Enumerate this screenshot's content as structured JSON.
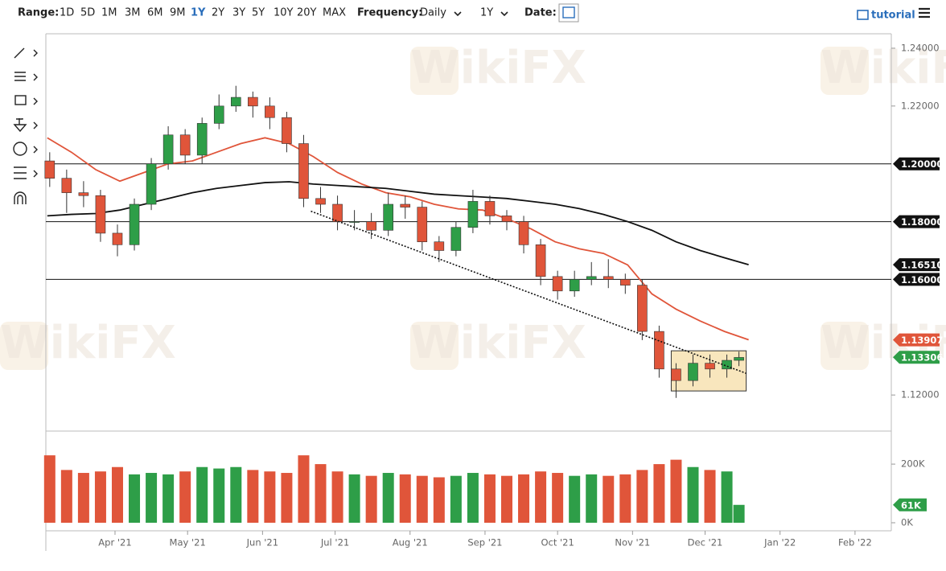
{
  "toolbar": {
    "range_label": "Range:",
    "ranges": [
      "1D",
      "5D",
      "1M",
      "3M",
      "6M",
      "9M",
      "1Y",
      "2Y",
      "3Y",
      "5Y",
      "10Y",
      "20Y",
      "MAX"
    ],
    "active_range": "1Y",
    "frequency_label": "Frequency:",
    "frequency": "Daily",
    "period": "1Y",
    "date_label": "Date:",
    "tutorial": "tutorial"
  },
  "watermark": "WikiFX",
  "chart_data": {
    "type": "candlestick",
    "x": [
      4,
      11,
      18,
      25,
      32,
      39,
      46,
      53,
      60,
      67,
      74,
      81,
      88,
      95,
      102,
      109,
      116,
      123,
      130,
      137,
      144,
      151,
      158,
      165,
      172,
      179,
      186,
      193,
      200,
      207,
      214,
      221,
      228,
      235,
      242,
      249,
      256,
      263,
      270,
      277,
      284,
      289
    ],
    "open": [
      1.201,
      1.195,
      1.19,
      1.189,
      1.176,
      1.172,
      1.186,
      1.2,
      1.21,
      1.203,
      1.214,
      1.22,
      1.223,
      1.22,
      1.216,
      1.207,
      1.188,
      1.186,
      1.18,
      1.18,
      1.177,
      1.186,
      1.185,
      1.173,
      1.17,
      1.178,
      1.187,
      1.182,
      1.18,
      1.172,
      1.161,
      1.156,
      1.16,
      1.161,
      1.16,
      1.158,
      1.142,
      1.129,
      1.125,
      1.131,
      1.129,
      1.132
    ],
    "high": [
      1.204,
      1.198,
      1.194,
      1.191,
      1.179,
      1.188,
      1.202,
      1.213,
      1.212,
      1.216,
      1.224,
      1.227,
      1.225,
      1.223,
      1.218,
      1.21,
      1.192,
      1.189,
      1.184,
      1.183,
      1.19,
      1.189,
      1.187,
      1.175,
      1.18,
      1.191,
      1.189,
      1.184,
      1.182,
      1.174,
      1.163,
      1.163,
      1.166,
      1.167,
      1.162,
      1.16,
      1.144,
      1.131,
      1.134,
      1.134,
      1.134,
      1.135
    ],
    "low": [
      1.192,
      1.183,
      1.185,
      1.173,
      1.168,
      1.17,
      1.184,
      1.198,
      1.2,
      1.2,
      1.212,
      1.218,
      1.216,
      1.212,
      1.204,
      1.185,
      1.183,
      1.177,
      1.177,
      1.174,
      1.175,
      1.181,
      1.17,
      1.166,
      1.168,
      1.176,
      1.179,
      1.177,
      1.169,
      1.158,
      1.153,
      1.154,
      1.158,
      1.157,
      1.155,
      1.139,
      1.126,
      1.119,
      1.123,
      1.126,
      1.126,
      1.13
    ],
    "close": [
      1.195,
      1.19,
      1.189,
      1.176,
      1.172,
      1.186,
      1.2,
      1.21,
      1.203,
      1.214,
      1.22,
      1.223,
      1.22,
      1.216,
      1.207,
      1.188,
      1.186,
      1.18,
      1.18,
      1.177,
      1.186,
      1.185,
      1.173,
      1.17,
      1.178,
      1.187,
      1.182,
      1.18,
      1.172,
      1.161,
      1.156,
      1.16,
      1.161,
      1.16,
      1.158,
      1.142,
      1.129,
      1.125,
      1.131,
      1.129,
      1.132,
      1.133
    ],
    "up_color": "#2e9e48",
    "down_color": "#e0553a",
    "xlim": [
      2.4,
      352
    ],
    "xticks": [
      {
        "value": 31,
        "label": "Apr '21"
      },
      {
        "value": 61,
        "label": "May '21"
      },
      {
        "value": 92,
        "label": "Jun '21"
      },
      {
        "value": 122,
        "label": "Jul '21"
      },
      {
        "value": 153,
        "label": "Aug '21"
      },
      {
        "value": 184,
        "label": "Sep '21"
      },
      {
        "value": 214,
        "label": "Oct '21"
      },
      {
        "value": 245,
        "label": "Nov '21"
      },
      {
        "value": 275,
        "label": "Dec '21"
      },
      {
        "value": 306,
        "label": "Jan '22"
      },
      {
        "value": 337,
        "label": "Feb '22"
      }
    ],
    "ylim": [
      1.1078,
      1.245
    ],
    "yticks": [
      {
        "value": 1.24,
        "label": "1.24000"
      },
      {
        "value": 1.22,
        "label": "1.22000"
      },
      {
        "value": 1.12,
        "label": "1.12000"
      }
    ],
    "price_lines": [
      {
        "value": 1.2,
        "label": "1.20000",
        "color": "#111111",
        "line": true
      },
      {
        "value": 1.18,
        "label": "1.18000",
        "color": "#111111",
        "line": true
      },
      {
        "value": 1.1651,
        "label": "1.16510",
        "color": "#111111",
        "line": false
      },
      {
        "value": 1.16,
        "label": "1.16000",
        "color": "#111111",
        "line": true
      },
      {
        "value": 1.13907,
        "label": "1.13907",
        "color": "#e0553a",
        "line": false
      },
      {
        "value": 1.13306,
        "label": "1.13306",
        "color": "#2e9e48",
        "line": false
      }
    ],
    "moving_averages": [
      {
        "color": "#e0553a",
        "x": [
          3,
          13,
          23,
          33,
          43,
          53,
          63,
          73,
          83,
          93,
          103,
          113,
          123,
          133,
          143,
          153,
          163,
          173,
          183,
          193,
          203,
          213,
          223,
          233,
          243,
          253,
          263,
          273,
          283,
          293
        ],
        "values": [
          1.209,
          1.204,
          1.198,
          1.194,
          1.197,
          1.2,
          1.201,
          1.204,
          1.207,
          1.209,
          1.207,
          1.2025,
          1.197,
          1.193,
          1.19,
          1.1886,
          1.186,
          1.1844,
          1.184,
          1.181,
          1.1775,
          1.173,
          1.1706,
          1.169,
          1.165,
          1.155,
          1.1497,
          1.1456,
          1.142,
          1.1391
        ]
      },
      {
        "color": "#111111",
        "x": [
          3,
          13,
          23,
          33,
          43,
          53,
          63,
          73,
          83,
          93,
          103,
          113,
          123,
          133,
          143,
          153,
          163,
          173,
          183,
          193,
          203,
          213,
          223,
          233,
          243,
          253,
          263,
          273,
          283,
          293
        ],
        "values": [
          1.182,
          1.1825,
          1.1828,
          1.184,
          1.186,
          1.188,
          1.19,
          1.1915,
          1.1925,
          1.1935,
          1.1938,
          1.193,
          1.1925,
          1.192,
          1.1915,
          1.1905,
          1.1895,
          1.189,
          1.1885,
          1.188,
          1.187,
          1.186,
          1.1845,
          1.1825,
          1.18,
          1.177,
          1.173,
          1.17,
          1.1675,
          1.1651
        ]
      }
    ],
    "trendline": {
      "x": [
        112,
        292
      ],
      "values": [
        1.1836,
        1.1275
      ]
    },
    "box": {
      "x": [
        261,
        292
      ],
      "values": [
        1.1353,
        1.1214
      ],
      "color": "#f8e6bd"
    },
    "volume": {
      "values": [
        230000,
        180000,
        170000,
        175000,
        190000,
        165000,
        170000,
        165000,
        175000,
        190000,
        185000,
        190000,
        180000,
        175000,
        170000,
        230000,
        200000,
        175000,
        165000,
        160000,
        170000,
        165000,
        160000,
        155000,
        160000,
        170000,
        165000,
        160000,
        165000,
        175000,
        170000,
        160000,
        165000,
        160000,
        165000,
        180000,
        200000,
        215000,
        190000,
        180000,
        175000,
        61000
      ],
      "ylim": [
        0,
        310000
      ],
      "yticks": [
        {
          "value": 200000,
          "label": "200K"
        },
        {
          "value": 0,
          "label": "0K"
        }
      ],
      "last_label": {
        "value": 61000,
        "label": "61K"
      }
    }
  }
}
